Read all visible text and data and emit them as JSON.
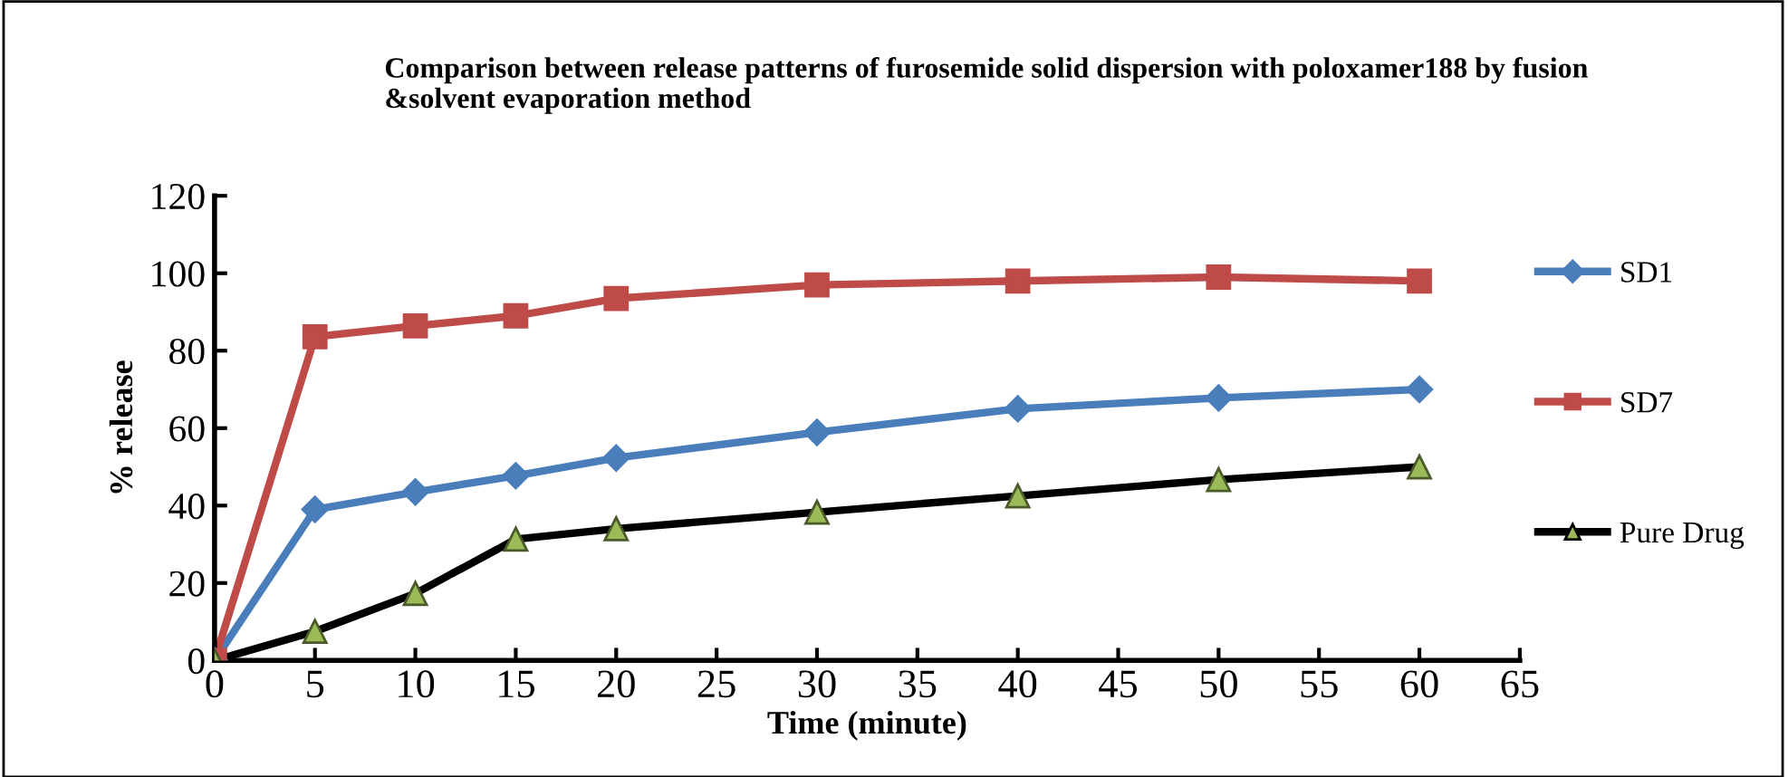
{
  "chart_data": {
    "type": "line",
    "title": "Comparison between release patterns of furosemide solid dispersion with poloxamer188 by fusion\n&solvent evaporation method",
    "xlabel": "Time (minute)",
    "ylabel": "% release",
    "x": [
      0,
      5,
      10,
      15,
      20,
      30,
      40,
      50,
      60
    ],
    "series": [
      {
        "name": "SD1",
        "color": "#4a7ebb",
        "marker": "diamond",
        "values": [
          0,
          39,
          43.5,
          47.7,
          52.3,
          58.9,
          65,
          67.8,
          70
        ]
      },
      {
        "name": "SD7",
        "color": "#be4b48",
        "marker": "square",
        "values": [
          0,
          83.6,
          86.4,
          89,
          93.5,
          97,
          98,
          99,
          98
        ]
      },
      {
        "name": "Pure Drug",
        "color": "#000000",
        "marker": "triangle",
        "colors": [
          "#9bbb59",
          "#9bbb59",
          "#9bbb59",
          "#9bbb59",
          "#9bbb59",
          "#9bbb59",
          "#9bbb59",
          "#9bbb59",
          "#9bbb59"
        ],
        "values": [
          0,
          7.5,
          17.3,
          31.3,
          34,
          38.3,
          42.5,
          46.7,
          50
        ]
      }
    ],
    "xlim": [
      0,
      65
    ],
    "xticks": [
      0,
      5,
      10,
      15,
      20,
      25,
      30,
      35,
      40,
      45,
      50,
      55,
      60,
      65
    ],
    "ylim": [
      0,
      120
    ],
    "yticks": [
      0,
      20,
      40,
      60,
      80,
      100,
      120
    ],
    "grid": false,
    "legend": "right",
    "line_style": "solid"
  }
}
